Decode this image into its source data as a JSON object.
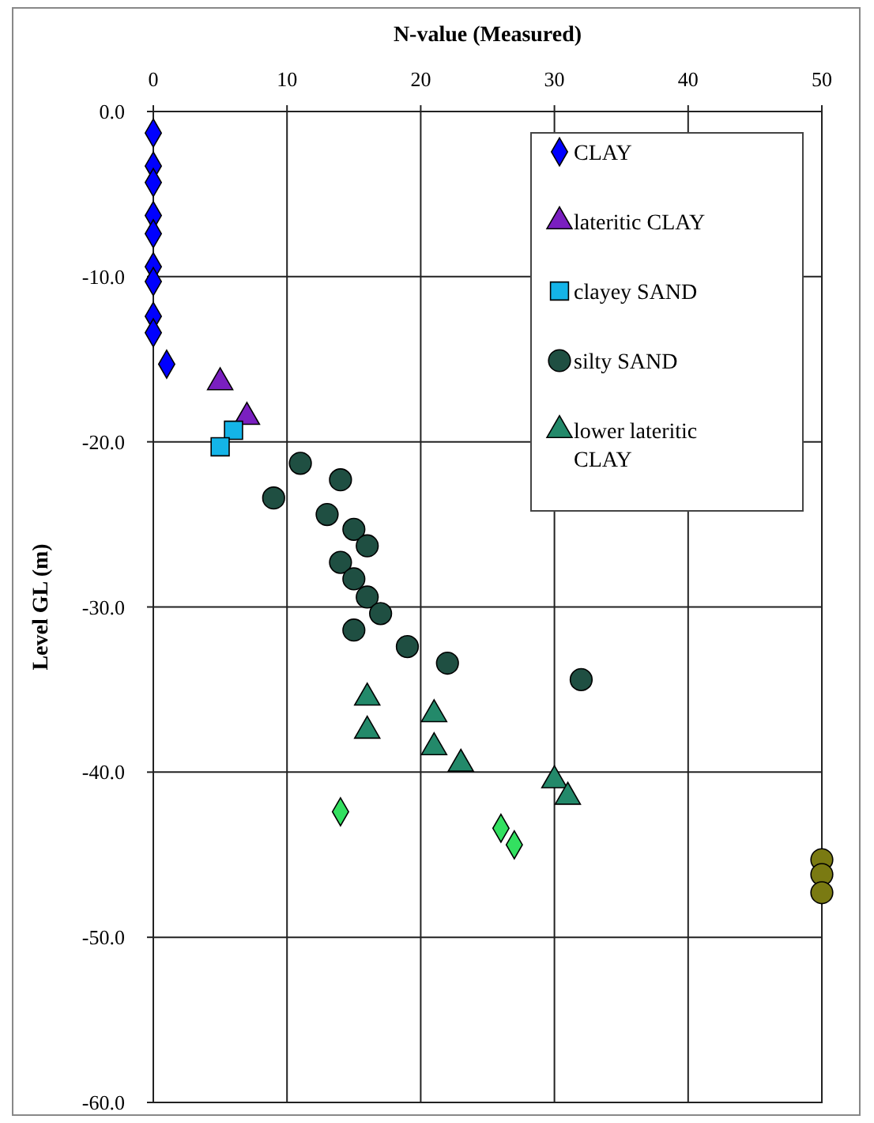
{
  "chart_data": {
    "type": "scatter",
    "xlabel": "N-value (Measured)",
    "ylabel": "Level GL (m)",
    "xlim": [
      0,
      50
    ],
    "ylim": [
      -60,
      0
    ],
    "xticks": [
      0,
      10,
      20,
      30,
      40,
      50
    ],
    "yticks": [
      {
        "value": 0,
        "label": "0.0"
      },
      {
        "value": -10,
        "label": "-10.0"
      },
      {
        "value": -20,
        "label": "-20.0"
      },
      {
        "value": -30,
        "label": "-30.0"
      },
      {
        "value": -40,
        "label": "-40.0"
      },
      {
        "value": -50,
        "label": "-50.0"
      },
      {
        "value": -60,
        "label": "-60.0"
      }
    ],
    "grid": true,
    "legend": "top right",
    "series": [
      {
        "name": "CLAY",
        "color": "#0000ff",
        "marker": "diamond",
        "x": [
          0,
          0,
          0,
          0,
          0,
          0,
          0,
          0,
          0,
          1
        ],
        "values": [
          -1.3,
          -3.3,
          -4.3,
          -6.3,
          -7.4,
          -9.4,
          -10.3,
          -12.4,
          -13.4,
          -15.3
        ]
      },
      {
        "name": "lateritic CLAY",
        "color": "#7a1fc0",
        "marker": "triangle",
        "x": [
          5,
          7
        ],
        "values": [
          -16.4,
          -18.5
        ]
      },
      {
        "name": "clayey SAND",
        "color": "#14b4e8",
        "marker": "square",
        "x": [
          6,
          5
        ],
        "values": [
          -19.3,
          -20.3
        ]
      },
      {
        "name": "silty SAND",
        "color": "#1f4f42",
        "marker": "circle",
        "x": [
          11,
          14,
          9,
          13,
          15,
          16,
          14,
          15,
          16,
          17,
          15,
          19,
          22,
          32
        ],
        "values": [
          -21.3,
          -22.3,
          -23.4,
          -24.4,
          -25.3,
          -26.3,
          -27.3,
          -28.3,
          -29.4,
          -30.4,
          -31.4,
          -32.4,
          -33.4,
          -34.4
        ]
      },
      {
        "name": "lower lateritic CLAY",
        "color": "#23896a",
        "marker": "triangle",
        "x": [
          16,
          21,
          16,
          21,
          23,
          30,
          31
        ],
        "values": [
          -35.5,
          -36.5,
          -37.5,
          -38.5,
          -39.5,
          -40.5,
          -41.5
        ]
      },
      {
        "color": "#33e060",
        "marker": "diamond",
        "x": [
          14,
          26,
          27
        ],
        "values": [
          -42.4,
          -43.4,
          -44.4
        ]
      },
      {
        "color": "#7a7a12",
        "marker": "circle",
        "x": [
          50,
          50,
          50
        ],
        "values": [
          -45.3,
          -46.2,
          -47.3
        ]
      }
    ]
  }
}
